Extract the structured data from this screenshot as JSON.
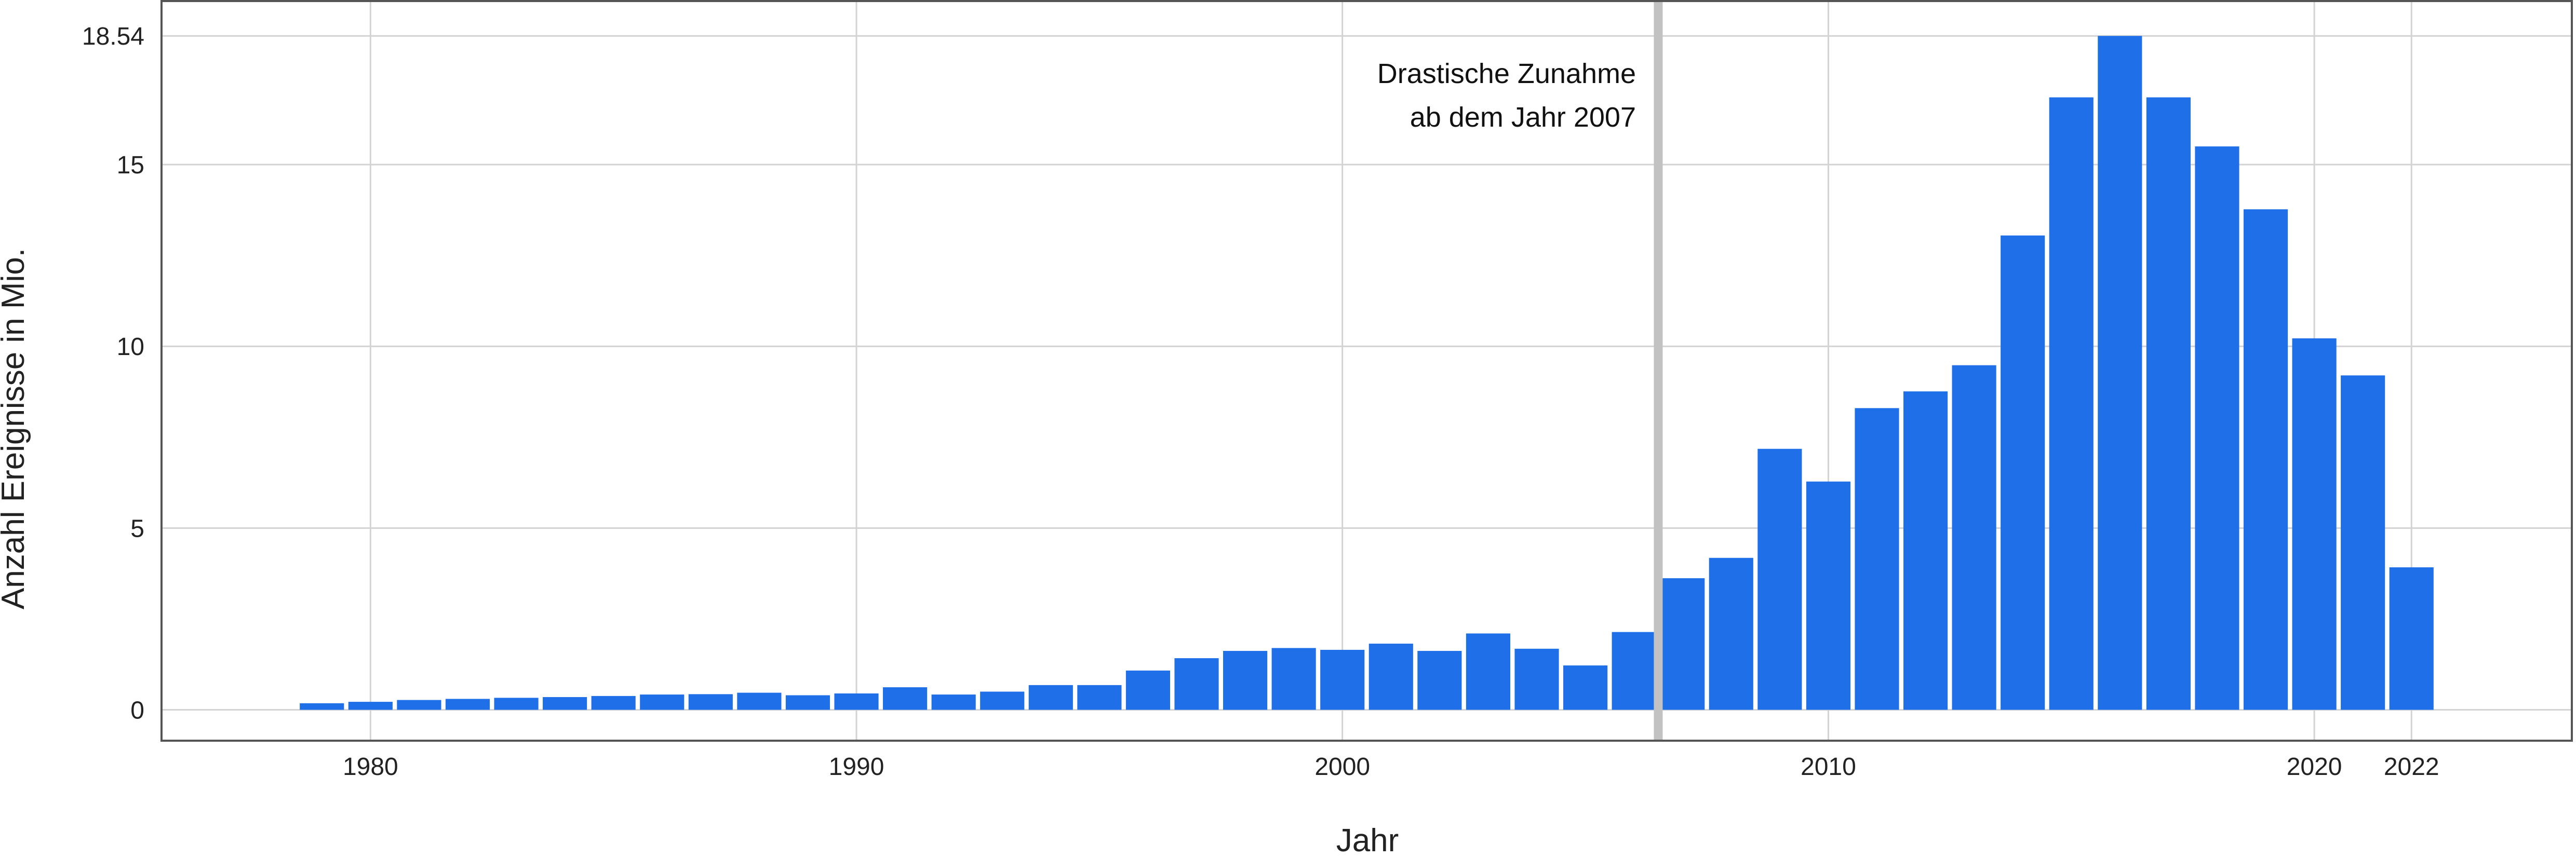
{
  "chart_data": {
    "type": "bar",
    "title": "",
    "xlabel": "Jahr",
    "ylabel": "Anzahl Ereignisse in Mio.",
    "xlim": [
      1975.7,
      2025.3
    ],
    "ylim": [
      -0.85,
      19.5
    ],
    "grid": true,
    "bar_color": "#1f6fe8",
    "x": [
      1979,
      1980,
      1981,
      1982,
      1983,
      1984,
      1985,
      1986,
      1987,
      1988,
      1989,
      1990,
      1991,
      1992,
      1993,
      1994,
      1995,
      1996,
      1997,
      1998,
      1999,
      2000,
      2001,
      2002,
      2003,
      2004,
      2005,
      2006,
      2007,
      2008,
      2009,
      2010,
      2011,
      2012,
      2013,
      2014,
      2015,
      2016,
      2017,
      2018,
      2019,
      2020,
      2021,
      2022
    ],
    "values": [
      0.18,
      0.22,
      0.27,
      0.3,
      0.33,
      0.35,
      0.38,
      0.42,
      0.43,
      0.47,
      0.4,
      0.45,
      0.62,
      0.42,
      0.5,
      0.68,
      0.68,
      1.08,
      1.42,
      1.62,
      1.7,
      1.65,
      1.82,
      1.62,
      2.1,
      1.68,
      1.22,
      2.14,
      3.62,
      4.18,
      7.18,
      6.28,
      8.3,
      8.76,
      9.48,
      13.05,
      16.85,
      18.54,
      16.85,
      15.5,
      13.77,
      10.22,
      9.2,
      3.92
    ],
    "xticks": [
      1980,
      1990,
      2000,
      2010,
      2020,
      2022
    ],
    "yticks": [
      0,
      5,
      10,
      15,
      18.54
    ],
    "ytick_labels": [
      "0",
      "5",
      "10",
      "15",
      "18.54"
    ],
    "marker_line": {
      "x": 2006.5,
      "color": "#c2c2c2"
    },
    "annotation": {
      "lines": [
        "Drastische Zunahme",
        "ab dem Jahr 2007"
      ]
    }
  }
}
